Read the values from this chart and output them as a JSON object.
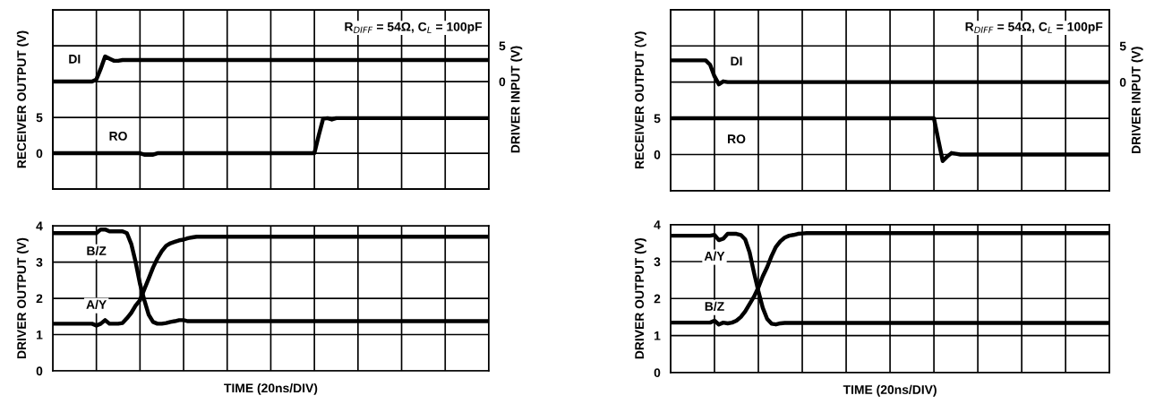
{
  "chart_data": [
    {
      "type": "line",
      "categories": [
        null,
        null,
        null,
        null,
        null,
        null,
        null,
        null,
        null,
        null,
        null,
        null,
        null,
        null,
        null,
        null,
        null,
        null,
        null,
        null,
        null,
        null,
        null,
        null,
        null,
        null,
        null,
        null,
        null,
        null,
        null,
        null,
        null,
        null,
        null,
        null,
        null,
        null,
        null,
        null,
        null,
        null,
        null,
        null,
        null,
        null,
        null,
        null,
        null,
        null,
        null,
        null,
        null,
        null,
        null,
        null,
        null,
        null,
        null,
        null,
        null,
        null,
        null,
        null,
        null,
        null,
        null,
        null,
        null,
        null,
        null,
        null,
        null,
        null,
        null,
        null,
        null,
        null,
        null,
        null,
        null,
        null,
        null,
        null,
        null,
        null,
        null,
        null,
        null,
        null,
        null,
        null,
        null,
        null,
        null,
        null,
        null,
        null,
        null,
        null,
        null
      ],
      "ylabel": "RECEIVER OUTPUT (V)",
      "y2label": "DRIVER INPUT (V)",
      "ylim": [
        -5,
        20
      ],
      "yticks": [
        {
          "value": -5,
          "label": null
        },
        0,
        5,
        {
          "value": 10,
          "label": null
        },
        {
          "value": 15,
          "label": null
        }
      ],
      "y2lim": [
        -15,
        10
      ],
      "y2ticks": [
        0,
        5
      ],
      "grid": true,
      "tick_labels": "y",
      "line_style": "solid",
      "marker": "none",
      "annotations": [
        "R$_{DIFF}$ = 54Ω, C$_{L}$ = 100pF"
      ],
      "series": [
        {
          "name": "DI",
          "color": "#000000",
          "axis": "y2",
          "values": [
            0,
            0,
            0,
            0,
            0,
            0,
            0,
            0,
            0,
            0,
            0.3,
            1.8,
            3.5,
            3.2,
            2.9,
            2.9,
            3.0,
            3.0,
            3.0,
            3.0,
            3.0,
            3.0,
            3.0,
            3.0,
            3.0,
            3.0,
            3.0,
            3.0,
            3.0,
            3.0,
            3.0,
            3.0,
            3.0,
            3.0,
            3.0,
            3.0,
            3.0,
            3.0,
            3.0,
            3.0,
            3.0,
            3.0,
            3.0,
            3.0,
            3.0,
            3.0,
            3.0,
            3.0,
            3.0,
            3.0,
            3.0,
            3.0,
            3.0,
            3.0,
            3.0,
            3.0,
            3.0,
            3.0,
            3.0,
            3.0,
            3.0,
            3.0,
            3.0,
            3.0,
            3.0,
            3.0,
            3.0,
            3.0,
            3.0,
            3.0,
            3.0,
            3.0,
            3.0,
            3.0,
            3.0,
            3.0,
            3.0,
            3.0,
            3.0,
            3.0,
            3.0,
            3.0,
            3.0,
            3.0,
            3.0,
            3.0,
            3.0,
            3.0,
            3.0,
            3.0,
            3.0,
            3.0,
            3.0,
            3.0,
            3.0,
            3.0,
            3.0,
            3.0,
            3.0,
            3.0,
            3.0
          ]
        },
        {
          "name": "RO",
          "color": "#000000",
          "axis": "y",
          "values": [
            0,
            0,
            0,
            0,
            0,
            0,
            0,
            0,
            0,
            0,
            0,
            0,
            0,
            0,
            0,
            0,
            0,
            0,
            0,
            0,
            0,
            -0.2,
            -0.2,
            -0.2,
            0,
            0,
            0,
            0,
            0,
            0,
            0,
            0,
            0,
            0,
            0,
            0,
            0,
            0,
            0,
            0,
            0,
            0,
            0,
            0,
            0,
            0,
            0,
            0,
            0,
            0,
            0,
            0,
            0,
            0,
            0,
            0,
            0,
            0,
            0,
            0,
            0,
            2.5,
            4.8,
            4.9,
            4.7,
            4.9,
            4.9,
            4.9,
            4.9,
            4.9,
            4.9,
            4.9,
            4.9,
            4.9,
            4.9,
            4.9,
            4.9,
            4.9,
            4.9,
            4.9,
            4.9,
            4.9,
            4.9,
            4.9,
            4.9,
            4.9,
            4.9,
            4.9,
            4.9,
            4.9,
            4.9,
            4.9,
            4.9,
            4.9,
            4.9,
            4.9,
            4.9,
            4.9,
            4.9,
            4.9,
            4.9
          ]
        }
      ]
    },
    {
      "type": "line",
      "categories": [
        null,
        null,
        null,
        null,
        null,
        null,
        null,
        null,
        null,
        null,
        null,
        null,
        null,
        null,
        null,
        null,
        null,
        null,
        null,
        null,
        null,
        null,
        null,
        null,
        null,
        null,
        null,
        null,
        null,
        null,
        null,
        null,
        null,
        null,
        null,
        null,
        null,
        null,
        null,
        null,
        null,
        null,
        null,
        null,
        null,
        null,
        null,
        null,
        null,
        null,
        null,
        null,
        null,
        null,
        null,
        null,
        null,
        null,
        null,
        null,
        null,
        null,
        null,
        null,
        null,
        null,
        null,
        null,
        null,
        null,
        null,
        null,
        null,
        null,
        null,
        null,
        null,
        null,
        null,
        null,
        null,
        null,
        null,
        null,
        null,
        null,
        null,
        null,
        null,
        null,
        null,
        null,
        null,
        null,
        null,
        null,
        null,
        null,
        null,
        null,
        null
      ],
      "ylabel": "RECEIVER OUTPUT (V)",
      "y2label": "DRIVER INPUT (V)",
      "ylim": [
        -5,
        20
      ],
      "yticks": [
        {
          "value": -5,
          "label": null
        },
        0,
        5,
        {
          "value": 10,
          "label": null
        },
        {
          "value": 15,
          "label": null
        }
      ],
      "y2lim": [
        -15,
        10
      ],
      "y2ticks": [
        0,
        5
      ],
      "grid": true,
      "tick_labels": "y",
      "line_style": "solid",
      "marker": "none",
      "annotations": [
        "R$_{DIFF}$ = 54Ω, C$_{L}$ = 100pF"
      ],
      "series": [
        {
          "name": "DI",
          "color": "#000000",
          "axis": "y2",
          "values": [
            3.0,
            3.0,
            3.0,
            3.0,
            3.0,
            3.0,
            3.0,
            3.0,
            3.0,
            2.4,
            0.8,
            -0.3,
            0.1,
            0,
            0,
            0,
            0,
            0,
            0,
            0,
            0,
            0,
            0,
            0,
            0,
            0,
            0,
            0,
            0,
            0,
            0,
            0,
            0,
            0,
            0,
            0,
            0,
            0,
            0,
            0,
            0,
            0,
            0,
            0,
            0,
            0,
            0,
            0,
            0,
            0,
            0,
            0,
            0,
            0,
            0,
            0,
            0,
            0,
            0,
            0,
            0,
            0,
            0,
            0,
            0,
            0,
            0,
            0,
            0,
            0,
            0,
            0,
            0,
            0,
            0,
            0,
            0,
            0,
            0,
            0,
            0,
            0,
            0,
            0,
            0,
            0,
            0,
            0,
            0,
            0,
            0,
            0,
            0,
            0,
            0,
            0,
            0,
            0,
            0,
            0,
            0
          ]
        },
        {
          "name": "RO",
          "color": "#000000",
          "axis": "y",
          "values": [
            5.0,
            5.0,
            5.0,
            5.0,
            5.0,
            5.0,
            5.0,
            5.0,
            5.0,
            5.0,
            5.0,
            5.0,
            5.0,
            5.0,
            5.0,
            5.0,
            5.0,
            5.0,
            5.0,
            5.0,
            5.0,
            5.0,
            5.0,
            5.0,
            5.0,
            5.0,
            5.0,
            5.0,
            5.0,
            5.0,
            5.0,
            5.0,
            5.0,
            5.0,
            5.0,
            5.0,
            5.0,
            5.0,
            5.0,
            5.0,
            5.0,
            5.0,
            5.0,
            5.0,
            5.0,
            5.0,
            5.0,
            5.0,
            5.0,
            5.0,
            5.0,
            5.0,
            5.0,
            5.0,
            5.0,
            5.0,
            5.0,
            5.0,
            5.0,
            5.0,
            5.0,
            2.0,
            -0.9,
            -0.3,
            0.2,
            0.1,
            0,
            0,
            0,
            0,
            0,
            0,
            0,
            0,
            0,
            0,
            0,
            0,
            0,
            0,
            0,
            0,
            0,
            0,
            0,
            0,
            0,
            0,
            0,
            0,
            0,
            0,
            0,
            0,
            0,
            0,
            0,
            0,
            0,
            0,
            0
          ]
        }
      ]
    },
    {
      "type": "line",
      "categories": [
        null,
        null,
        null,
        null,
        null,
        null,
        null,
        null,
        null,
        null,
        null,
        null,
        null,
        null,
        null,
        null,
        null,
        null,
        null,
        null,
        null,
        null,
        null,
        null,
        null,
        null,
        null,
        null,
        null,
        null,
        null,
        null,
        null,
        null,
        null,
        null,
        null,
        null,
        null,
        null,
        null,
        null,
        null,
        null,
        null,
        null,
        null,
        null,
        null,
        null,
        null,
        null,
        null,
        null,
        null,
        null,
        null,
        null,
        null,
        null,
        null,
        null,
        null,
        null,
        null,
        null,
        null,
        null,
        null,
        null,
        null,
        null,
        null,
        null,
        null,
        null,
        null,
        null,
        null,
        null,
        null,
        null,
        null,
        null,
        null,
        null,
        null,
        null,
        null,
        null,
        null,
        null,
        null,
        null,
        null,
        null,
        null,
        null,
        null,
        null,
        null
      ],
      "ylabel": "DRIVER OUTPUT (V)",
      "xlabel": "TIME (20ns/DIV)",
      "ylim": [
        0,
        4
      ],
      "yticks": [
        0,
        1,
        2,
        3,
        4
      ],
      "grid": true,
      "tick_labels": "y",
      "line_style": "solid",
      "marker": "none",
      "series": [
        {
          "name": "B/Z",
          "color": "#000000",
          "values": [
            3.8,
            3.8,
            3.8,
            3.8,
            3.8,
            3.8,
            3.8,
            3.8,
            3.8,
            3.8,
            3.8,
            3.9,
            3.9,
            3.85,
            3.85,
            3.85,
            3.85,
            3.8,
            3.5,
            3.0,
            2.4,
            1.95,
            1.55,
            1.35,
            1.3,
            1.3,
            1.32,
            1.35,
            1.37,
            1.4,
            1.4,
            1.37,
            1.37,
            1.37,
            1.37,
            1.37,
            1.37,
            1.37,
            1.37,
            1.37,
            1.37,
            1.37,
            1.37,
            1.37,
            1.37,
            1.37,
            1.37,
            1.37,
            1.37,
            1.37,
            1.37,
            1.37,
            1.37,
            1.37,
            1.37,
            1.37,
            1.37,
            1.37,
            1.37,
            1.37,
            1.37,
            1.37,
            1.37,
            1.37,
            1.37,
            1.37,
            1.37,
            1.37,
            1.37,
            1.37,
            1.37,
            1.37,
            1.37,
            1.37,
            1.37,
            1.37,
            1.37,
            1.37,
            1.37,
            1.37,
            1.37,
            1.37,
            1.37,
            1.37,
            1.37,
            1.37,
            1.37,
            1.37,
            1.37,
            1.37,
            1.37,
            1.37,
            1.37,
            1.37,
            1.37,
            1.37,
            1.37,
            1.37,
            1.37,
            1.37,
            1.37
          ]
        },
        {
          "name": "A/Y",
          "color": "#000000",
          "values": [
            1.3,
            1.3,
            1.3,
            1.3,
            1.3,
            1.3,
            1.3,
            1.3,
            1.3,
            1.3,
            1.25,
            1.3,
            1.4,
            1.3,
            1.3,
            1.3,
            1.32,
            1.45,
            1.6,
            1.8,
            1.95,
            2.25,
            2.55,
            2.85,
            3.1,
            3.3,
            3.45,
            3.52,
            3.56,
            3.6,
            3.62,
            3.66,
            3.68,
            3.7,
            3.7,
            3.7,
            3.7,
            3.7,
            3.7,
            3.7,
            3.7,
            3.7,
            3.7,
            3.7,
            3.7,
            3.7,
            3.7,
            3.7,
            3.7,
            3.7,
            3.7,
            3.7,
            3.7,
            3.7,
            3.7,
            3.7,
            3.7,
            3.7,
            3.7,
            3.7,
            3.7,
            3.7,
            3.7,
            3.7,
            3.7,
            3.7,
            3.7,
            3.7,
            3.7,
            3.7,
            3.7,
            3.7,
            3.7,
            3.7,
            3.7,
            3.7,
            3.7,
            3.7,
            3.7,
            3.7,
            3.7,
            3.7,
            3.7,
            3.7,
            3.7,
            3.7,
            3.7,
            3.7,
            3.7,
            3.7,
            3.7,
            3.7,
            3.7,
            3.7,
            3.7,
            3.7,
            3.7,
            3.7,
            3.7,
            3.7,
            3.7
          ]
        }
      ]
    },
    {
      "type": "line",
      "categories": [
        null,
        null,
        null,
        null,
        null,
        null,
        null,
        null,
        null,
        null,
        null,
        null,
        null,
        null,
        null,
        null,
        null,
        null,
        null,
        null,
        null,
        null,
        null,
        null,
        null,
        null,
        null,
        null,
        null,
        null,
        null,
        null,
        null,
        null,
        null,
        null,
        null,
        null,
        null,
        null,
        null,
        null,
        null,
        null,
        null,
        null,
        null,
        null,
        null,
        null,
        null,
        null,
        null,
        null,
        null,
        null,
        null,
        null,
        null,
        null,
        null,
        null,
        null,
        null,
        null,
        null,
        null,
        null,
        null,
        null,
        null,
        null,
        null,
        null,
        null,
        null,
        null,
        null,
        null,
        null,
        null,
        null,
        null,
        null,
        null,
        null,
        null,
        null,
        null,
        null,
        null,
        null,
        null,
        null,
        null,
        null,
        null,
        null,
        null,
        null,
        null
      ],
      "ylabel": "DRIVER OUTPUT (V)",
      "xlabel": "TIME (20ns/DIV)",
      "ylim": [
        0,
        4
      ],
      "yticks": [
        0,
        1,
        2,
        3,
        4
      ],
      "grid": true,
      "tick_labels": "y",
      "line_style": "solid",
      "marker": "none",
      "series": [
        {
          "name": "A/Y",
          "color": "#000000",
          "values": [
            3.7,
            3.7,
            3.7,
            3.7,
            3.7,
            3.7,
            3.7,
            3.7,
            3.7,
            3.7,
            3.72,
            3.58,
            3.62,
            3.75,
            3.75,
            3.75,
            3.72,
            3.6,
            3.25,
            2.7,
            2.2,
            1.75,
            1.45,
            1.32,
            1.3,
            1.33,
            1.34,
            1.34,
            1.34,
            1.34,
            1.34,
            1.34,
            1.34,
            1.34,
            1.34,
            1.34,
            1.34,
            1.34,
            1.34,
            1.34,
            1.34,
            1.34,
            1.34,
            1.34,
            1.34,
            1.34,
            1.34,
            1.34,
            1.34,
            1.34,
            1.34,
            1.34,
            1.34,
            1.34,
            1.34,
            1.34,
            1.34,
            1.34,
            1.34,
            1.34,
            1.34,
            1.34,
            1.34,
            1.34,
            1.34,
            1.34,
            1.34,
            1.34,
            1.34,
            1.34,
            1.34,
            1.34,
            1.34,
            1.34,
            1.34,
            1.34,
            1.34,
            1.34,
            1.34,
            1.34,
            1.34,
            1.34,
            1.34,
            1.34,
            1.34,
            1.34,
            1.34,
            1.34,
            1.34,
            1.34,
            1.34,
            1.34,
            1.34,
            1.34,
            1.34,
            1.34,
            1.34,
            1.34,
            1.34,
            1.34,
            1.34
          ]
        },
        {
          "name": "B/Z",
          "color": "#000000",
          "values": [
            1.35,
            1.35,
            1.35,
            1.35,
            1.35,
            1.35,
            1.35,
            1.35,
            1.35,
            1.35,
            1.4,
            1.3,
            1.35,
            1.33,
            1.35,
            1.4,
            1.5,
            1.65,
            1.85,
            2.05,
            2.3,
            2.6,
            2.85,
            3.15,
            3.4,
            3.55,
            3.65,
            3.7,
            3.72,
            3.75,
            3.76,
            3.77,
            3.77,
            3.77,
            3.77,
            3.77,
            3.77,
            3.77,
            3.77,
            3.77,
            3.77,
            3.77,
            3.77,
            3.77,
            3.77,
            3.77,
            3.77,
            3.77,
            3.77,
            3.77,
            3.77,
            3.77,
            3.77,
            3.77,
            3.77,
            3.77,
            3.77,
            3.77,
            3.77,
            3.77,
            3.77,
            3.77,
            3.77,
            3.77,
            3.77,
            3.77,
            3.77,
            3.77,
            3.77,
            3.77,
            3.77,
            3.77,
            3.77,
            3.77,
            3.77,
            3.77,
            3.77,
            3.77,
            3.77,
            3.77,
            3.77,
            3.77,
            3.77,
            3.77,
            3.77,
            3.77,
            3.77,
            3.77,
            3.77,
            3.77,
            3.77,
            3.77,
            3.77,
            3.77,
            3.77,
            3.77,
            3.77,
            3.77,
            3.77,
            3.77,
            3.77
          ]
        }
      ]
    }
  ]
}
